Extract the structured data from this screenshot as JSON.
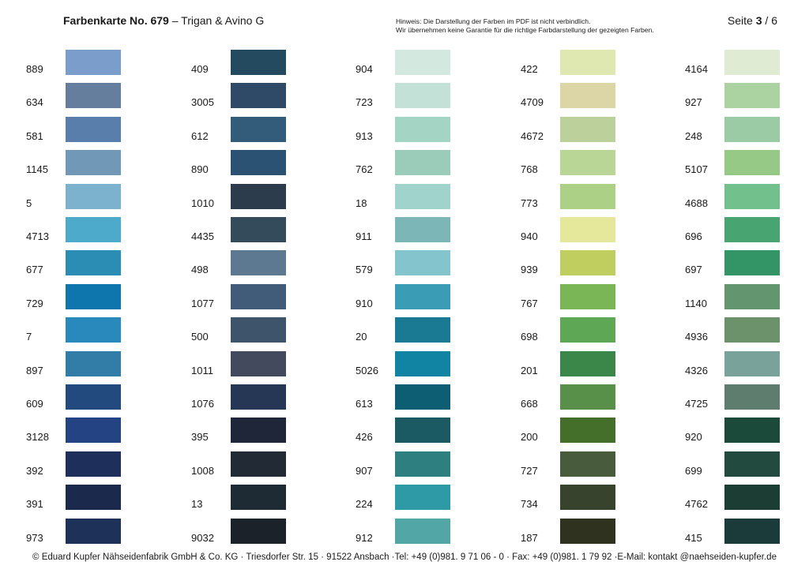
{
  "header": {
    "title_bold": "Farbenkarte No. 679",
    "title_rest": " – Trigan & Avino G",
    "note_line1": "Hinweis: Die Darstellung der Farben im PDF ist nicht verbindlich.",
    "note_line2": "Wir übernehmen keine Garantie für die richtige Farbdarstellung der gezeigten Farben.",
    "page_prefix": "Seite ",
    "page_current": "3",
    "page_suffix": " / 6"
  },
  "columns": [
    {
      "items": [
        {
          "code": "889",
          "color": "#7a9dcc"
        },
        {
          "code": "634",
          "color": "#657e9e"
        },
        {
          "code": "581",
          "color": "#5a7eac"
        },
        {
          "code": "1145",
          "color": "#7199b7"
        },
        {
          "code": "5",
          "color": "#7cb2cd"
        },
        {
          "code": "4713",
          "color": "#4eaacb"
        },
        {
          "code": "677",
          "color": "#2c8db4"
        },
        {
          "code": "729",
          "color": "#0e76ad"
        },
        {
          "code": "7",
          "color": "#2a89bc"
        },
        {
          "code": "897",
          "color": "#327ca8"
        },
        {
          "code": "609",
          "color": "#224a7e"
        },
        {
          "code": "3128",
          "color": "#244382"
        },
        {
          "code": "392",
          "color": "#1f2f5c"
        },
        {
          "code": "391",
          "color": "#1b2a4c"
        },
        {
          "code": "973",
          "color": "#1e3158"
        }
      ]
    },
    {
      "items": [
        {
          "code": "409",
          "color": "#234a5f"
        },
        {
          "code": "3005",
          "color": "#2f4a66"
        },
        {
          "code": "612",
          "color": "#335c7b"
        },
        {
          "code": "890",
          "color": "#2c5273"
        },
        {
          "code": "1010",
          "color": "#2d3c4c"
        },
        {
          "code": "4435",
          "color": "#334b5a"
        },
        {
          "code": "498",
          "color": "#5d7891"
        },
        {
          "code": "1077",
          "color": "#405c78"
        },
        {
          "code": "500",
          "color": "#3e546a"
        },
        {
          "code": "1011",
          "color": "#434a5d"
        },
        {
          "code": "1076",
          "color": "#253755"
        },
        {
          "code": "395",
          "color": "#20263a"
        },
        {
          "code": "1008",
          "color": "#222a35"
        },
        {
          "code": "13",
          "color": "#1f2b34"
        },
        {
          "code": "9032",
          "color": "#1c2229"
        }
      ]
    },
    {
      "items": [
        {
          "code": "904",
          "color": "#d3e9e0"
        },
        {
          "code": "723",
          "color": "#c3e1d7"
        },
        {
          "code": "913",
          "color": "#a3d4c4"
        },
        {
          "code": "762",
          "color": "#9bcbb9"
        },
        {
          "code": "18",
          "color": "#9fd3cb"
        },
        {
          "code": "911",
          "color": "#7db6b6"
        },
        {
          "code": "579",
          "color": "#84c4cd"
        },
        {
          "code": "910",
          "color": "#3a9db5"
        },
        {
          "code": "20",
          "color": "#1b7a93"
        },
        {
          "code": "5026",
          "color": "#1184a3"
        },
        {
          "code": "613",
          "color": "#0d5e72"
        },
        {
          "code": "426",
          "color": "#1b5a63"
        },
        {
          "code": "907",
          "color": "#2e7f80"
        },
        {
          "code": "224",
          "color": "#2d9aa6"
        },
        {
          "code": "912",
          "color": "#52a7a6"
        }
      ]
    },
    {
      "items": [
        {
          "code": "422",
          "color": "#e0e8b2"
        },
        {
          "code": "4709",
          "color": "#dcd6a7"
        },
        {
          "code": "4672",
          "color": "#bcd09b"
        },
        {
          "code": "768",
          "color": "#b9d696"
        },
        {
          "code": "773",
          "color": "#acd086"
        },
        {
          "code": "940",
          "color": "#e5e89a"
        },
        {
          "code": "939",
          "color": "#bfce5f"
        },
        {
          "code": "767",
          "color": "#7bb656"
        },
        {
          "code": "698",
          "color": "#5ea755"
        },
        {
          "code": "201",
          "color": "#3a8749"
        },
        {
          "code": "668",
          "color": "#589049"
        },
        {
          "code": "200",
          "color": "#436f2b"
        },
        {
          "code": "727",
          "color": "#485b3d"
        },
        {
          "code": "734",
          "color": "#38432d"
        },
        {
          "code": "187",
          "color": "#2e321f"
        }
      ]
    },
    {
      "items": [
        {
          "code": "4164",
          "color": "#dfecd3"
        },
        {
          "code": "927",
          "color": "#abd3a1"
        },
        {
          "code": "248",
          "color": "#9acba4"
        },
        {
          "code": "5107",
          "color": "#97c986"
        },
        {
          "code": "4688",
          "color": "#72c08c"
        },
        {
          "code": "696",
          "color": "#48a572"
        },
        {
          "code": "697",
          "color": "#339566"
        },
        {
          "code": "1140",
          "color": "#63956f"
        },
        {
          "code": "4936",
          "color": "#6b926b"
        },
        {
          "code": "4326",
          "color": "#79a39a"
        },
        {
          "code": "4725",
          "color": "#5f7d6e"
        },
        {
          "code": "920",
          "color": "#1c4a3a"
        },
        {
          "code": "699",
          "color": "#234a3e"
        },
        {
          "code": "4762",
          "color": "#1c3d34"
        },
        {
          "code": "415",
          "color": "#1b3b3a"
        }
      ]
    }
  ],
  "footer": {
    "text": "© Eduard Kupfer Nähseidenfabrik GmbH & Co. KG · Triesdorfer Str. 15 · 91522 Ansbach ·Tel: +49 (0)981. 9 71 06 - 0 · Fax: +49 (0)981. 1 79 92 ·E-Mail: kontakt @naehseiden-kupfer.de"
  }
}
